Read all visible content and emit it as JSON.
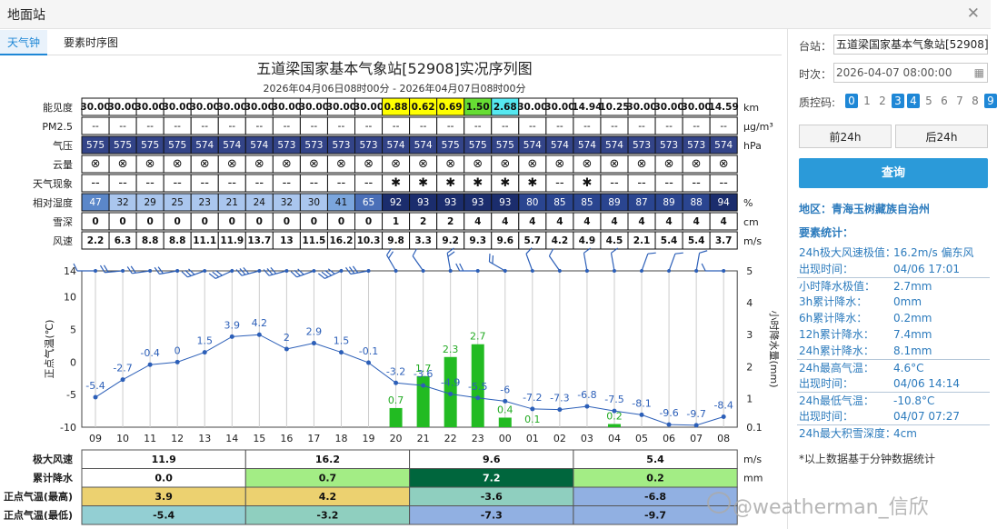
{
  "window": {
    "title": "地面站"
  },
  "tabs": [
    {
      "label": "天气钟"
    },
    {
      "label": "要素时序图"
    }
  ],
  "chart_title": "五道梁国家基本气象站[52908]实况序列图",
  "chart_subtitle": "2026年04月06日08时00分 - 2026年04月07日08时00分",
  "hours": [
    "09",
    "10",
    "11",
    "12",
    "13",
    "14",
    "15",
    "16",
    "17",
    "18",
    "19",
    "20",
    "21",
    "22",
    "23",
    "00",
    "01",
    "02",
    "03",
    "04",
    "05",
    "06",
    "07",
    "08"
  ],
  "rows": [
    {
      "key": "visibility",
      "label": "能见度",
      "unit": "km",
      "values": [
        "30.00",
        "30.00",
        "30.00",
        "30.00",
        "30.00",
        "30.00",
        "30.00",
        "30.00",
        "30.00",
        "30.00",
        "30.00",
        "0.88",
        "0.62",
        "0.69",
        "1.50",
        "2.68",
        "30.00",
        "30.00",
        "14.94",
        "10.25",
        "30.00",
        "30.00",
        "30.00",
        "14.59"
      ],
      "bgs": [
        "#fff",
        "#fff",
        "#fff",
        "#fff",
        "#fff",
        "#fff",
        "#fff",
        "#fff",
        "#fff",
        "#fff",
        "#fff",
        "#ffff00",
        "#ffff00",
        "#ffff00",
        "#66dd33",
        "#55e8f0",
        "#fff",
        "#fff",
        "#fff",
        "#fff",
        "#fff",
        "#fff",
        "#fff",
        "#fff"
      ]
    },
    {
      "key": "pm25",
      "label": "PM2.5",
      "unit": "μg/m³",
      "values": [
        "--",
        "--",
        "--",
        "--",
        "--",
        "--",
        "--",
        "--",
        "--",
        "--",
        "--",
        "--",
        "--",
        "--",
        "--",
        "--",
        "--",
        "--",
        "--",
        "--",
        "--",
        "--",
        "--",
        "--"
      ]
    },
    {
      "key": "pressure",
      "label": "气压",
      "unit": "hPa",
      "values": [
        "575",
        "575",
        "575",
        "575",
        "574",
        "574",
        "574",
        "573",
        "573",
        "573",
        "573",
        "574",
        "574",
        "575",
        "575",
        "575",
        "574",
        "574",
        "574",
        "574",
        "573",
        "573",
        "573",
        "574"
      ]
    },
    {
      "key": "cloud",
      "label": "云量",
      "unit": "",
      "values": [
        "⊗",
        "⊗",
        "⊗",
        "⊗",
        "⊗",
        "⊗",
        "⊗",
        "⊗",
        "⊗",
        "⊗",
        "⊗",
        "⊗",
        "⊗",
        "⊗",
        "⊗",
        "⊗",
        "⊗",
        "⊗",
        "⊗",
        "⊗",
        "⊗",
        "⊗",
        "⊗",
        "⊗"
      ]
    },
    {
      "key": "weather",
      "label": "天气现象",
      "unit": "",
      "values": [
        "--",
        "--",
        "--",
        "--",
        "--",
        "--",
        "--",
        "--",
        "--",
        "--",
        "--",
        "✱",
        "✱",
        "✱",
        "✱",
        "✱",
        "✱",
        "--",
        "✱",
        "--",
        "--",
        "--",
        "--",
        "--"
      ]
    },
    {
      "key": "humidity",
      "label": "相对湿度",
      "unit": "%",
      "values": [
        "47",
        "32",
        "29",
        "25",
        "23",
        "21",
        "24",
        "32",
        "30",
        "41",
        "65",
        "92",
        "93",
        "93",
        "93",
        "93",
        "80",
        "85",
        "85",
        "89",
        "87",
        "89",
        "88",
        "94"
      ]
    },
    {
      "key": "snow",
      "label": "雪深",
      "unit": "cm",
      "values": [
        "0",
        "0",
        "0",
        "0",
        "0",
        "0",
        "0",
        "0",
        "0",
        "0",
        "0",
        "1",
        "2",
        "2",
        "4",
        "4",
        "4",
        "4",
        "4",
        "4",
        "4",
        "4",
        "4",
        "4"
      ]
    },
    {
      "key": "wind",
      "label": "风速",
      "unit": "m/s",
      "values": [
        "2.2",
        "6.3",
        "8.8",
        "8.8",
        "11.1",
        "11.9",
        "13.7",
        "13",
        "11.5",
        "16.2",
        "10.3",
        "9.8",
        "3.3",
        "9.2",
        "9.3",
        "9.6",
        "5.7",
        "4.2",
        "4.9",
        "4.5",
        "2.1",
        "5.4",
        "5.4",
        "3.7"
      ]
    }
  ],
  "chart_data": {
    "type": "line+bar",
    "x": [
      "09",
      "10",
      "11",
      "12",
      "13",
      "14",
      "15",
      "16",
      "17",
      "18",
      "19",
      "20",
      "21",
      "22",
      "23",
      "00",
      "01",
      "02",
      "03",
      "04",
      "05",
      "06",
      "07",
      "08"
    ],
    "series": [
      {
        "values": [
          -5.4,
          -2.7,
          -0.4,
          0,
          1.5,
          3.9,
          4.2,
          2,
          2.9,
          1.5,
          -0.1,
          -3.2,
          -3.6,
          -4.9,
          -5.5,
          -6,
          -7.2,
          -7.3,
          -6.8,
          -7.5,
          -8.1,
          -9.6,
          -9.7,
          -8.4
        ],
        "axis": "left",
        "color": "#2c5fb8"
      },
      {
        "values": [
          0,
          0,
          0,
          0,
          0,
          0,
          0,
          0,
          0,
          0,
          0,
          0.7,
          1.7,
          2.3,
          2.7,
          0.4,
          0.1,
          0,
          0,
          0.2,
          0,
          0,
          0,
          0
        ],
        "axis": "right",
        "type": "bar",
        "color": "#22bb22"
      }
    ],
    "ylabel": "正点气温(℃)",
    "y2label": "小时降水量(mm)",
    "ylim": [
      -10,
      14
    ],
    "yticks": [
      -10,
      -5,
      0,
      5,
      10,
      14
    ],
    "y2lim": [
      0.1,
      5
    ],
    "y2ticks": [
      0.1,
      1,
      2,
      3,
      4,
      5
    ],
    "wind_dir": [
      90,
      85,
      82,
      80,
      70,
      65,
      75,
      75,
      70,
      65,
      80,
      150,
      145,
      170,
      90,
      120,
      160,
      145,
      170,
      170,
      200,
      200,
      190,
      90
    ]
  },
  "stats_table": {
    "units": [
      "m/s",
      "mm",
      "",
      ""
    ],
    "rows": [
      {
        "label": "极大风速",
        "cells": [
          "11.9",
          "16.2",
          "9.6",
          "5.4"
        ],
        "bgs": [
          "#fff",
          "#fff",
          "#fff",
          "#fff"
        ]
      },
      {
        "label": "累计降水",
        "cells": [
          "0.0",
          "0.7",
          "7.2",
          "0.2"
        ],
        "bgs": [
          "#fff",
          "#a3ed85",
          "#00663d",
          "#a3ed85"
        ]
      },
      {
        "label": "正点气温(最高)",
        "cells": [
          "3.9",
          "4.2",
          "-3.6",
          "-6.8"
        ],
        "bgs": [
          "#ecd170",
          "#ecd170",
          "#8fcfbf",
          "#91b0e2"
        ]
      },
      {
        "label": "正点气温(最低)",
        "cells": [
          "-5.4",
          "-3.2",
          "-7.3",
          "-9.7"
        ],
        "bgs": [
          "#93cfd3",
          "#8fcfbf",
          "#91b0e2",
          "#91b0e2"
        ]
      }
    ]
  },
  "sidebar": {
    "station_label": "台站：",
    "station_value": "五道梁国家基本气象站[52908]",
    "time_label": "时次：",
    "time_value": "2026-04-07 08:00:00",
    "qc_label": "质控码:",
    "qc_codes": [
      "0",
      "1",
      "2",
      "3",
      "4",
      "5",
      "6",
      "7",
      "8",
      "9"
    ],
    "qc_on": [
      true,
      false,
      false,
      true,
      true,
      false,
      false,
      false,
      false,
      true
    ],
    "prev": "前24h",
    "next": "后24h",
    "query": "查询",
    "region": "地区：青海玉树藏族自治州",
    "stats_title": "要素统计：",
    "stats": [
      {
        "k": "24h极大风速极值：",
        "v": "16.2m/s 偏东风",
        "bt": false
      },
      {
        "k": "出现时间：",
        "v": "04/06 17:01",
        "bt": false
      },
      {
        "k": "小时降水极值：",
        "v": "2.7mm",
        "bt": true
      },
      {
        "k": "3h累计降水：",
        "v": "0mm",
        "bt": false
      },
      {
        "k": "6h累计降水：",
        "v": "0.2mm",
        "bt": false
      },
      {
        "k": "12h累计降水：",
        "v": "7.4mm",
        "bt": false
      },
      {
        "k": "24h累计降水：",
        "v": "8.1mm",
        "bt": false
      },
      {
        "k": "24h最高气温：",
        "v": "4.6°C",
        "bt": true
      },
      {
        "k": "出现时间：",
        "v": "04/06 14:14",
        "bt": false
      },
      {
        "k": "24h最低气温：",
        "v": "-10.8°C",
        "bt": true
      },
      {
        "k": "出现时间：",
        "v": "04/07 07:27",
        "bt": false
      },
      {
        "k": "24h最大积雪深度：",
        "v": "4cm",
        "bt": true
      }
    ],
    "footnote": "*以上数据基于分钟数据统计"
  },
  "watermark": "@weatherman_信欣",
  "colors": {
    "accent": "#1e87d6",
    "line": "#2c5fb8",
    "bar": "#22bb22"
  }
}
